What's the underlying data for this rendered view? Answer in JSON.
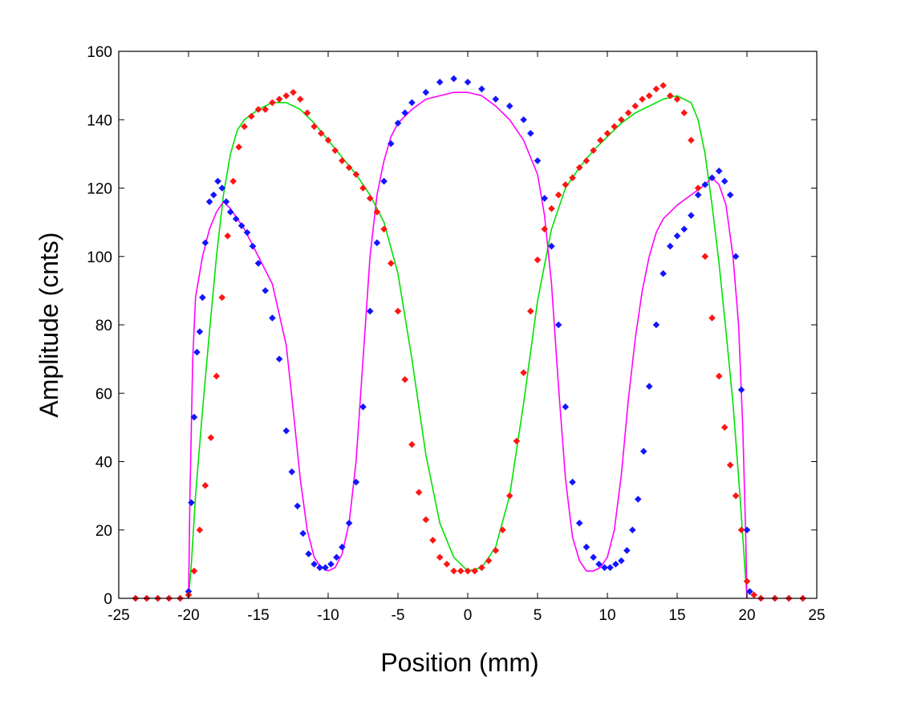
{
  "chart_data": {
    "type": "scatter",
    "title": "",
    "xlabel": "Position (mm)",
    "ylabel": "Amplitude (cnts)",
    "xlim": [
      -25,
      25
    ],
    "ylim": [
      0,
      160
    ],
    "xticks": [
      -25,
      -20,
      -15,
      -10,
      -5,
      0,
      5,
      10,
      15,
      20,
      25
    ],
    "yticks": [
      0,
      20,
      40,
      60,
      80,
      100,
      120,
      140,
      160
    ],
    "xtick_labels": [
      "-25",
      "-20",
      "-15",
      "-10",
      "-5",
      "0",
      "5",
      "10",
      "15",
      "20",
      "25"
    ],
    "ytick_labels": [
      "0",
      "20",
      "40",
      "60",
      "80",
      "100",
      "120",
      "140",
      "160"
    ],
    "grid": false,
    "legend": "none",
    "colors": {
      "blue_points": "#1414ff",
      "red_points": "#ff1414",
      "green_fit": "#00e000",
      "magenta_fit": "#ff00ff"
    },
    "series": [
      {
        "kind": "points",
        "color_key": "blue_points",
        "x": [
          -23.8,
          -23.0,
          -22.2,
          -21.4,
          -20.6,
          -20.0,
          -19.8,
          -19.6,
          -19.4,
          -19.2,
          -19.0,
          -18.8,
          -18.5,
          -18.2,
          -17.9,
          -17.6,
          -17.3,
          -17.0,
          -16.6,
          -16.2,
          -15.8,
          -15.4,
          -15.0,
          -14.5,
          -14.0,
          -13.5,
          -13.0,
          -12.6,
          -12.2,
          -11.8,
          -11.4,
          -11.0,
          -10.6,
          -10.2,
          -9.8,
          -9.4,
          -9.0,
          -8.5,
          -8.0,
          -7.5,
          -7.0,
          -6.5,
          -6.0,
          -5.5,
          -5.0,
          -4.5,
          -4.0,
          -3.0,
          -2.0,
          -1.0,
          0.0,
          1.0,
          2.0,
          3.0,
          4.0,
          4.5,
          5.0,
          5.5,
          6.0,
          6.5,
          7.0,
          7.5,
          8.0,
          8.5,
          9.0,
          9.4,
          9.8,
          10.2,
          10.6,
          11.0,
          11.4,
          11.8,
          12.2,
          12.6,
          13.0,
          13.5,
          14.0,
          14.5,
          15.0,
          15.5,
          16.0,
          16.5,
          17.0,
          17.5,
          18.0,
          18.4,
          18.8,
          19.2,
          19.6,
          20.0,
          20.2,
          21.0,
          22.0,
          23.0,
          24.0
        ],
        "y": [
          0,
          0,
          0,
          0,
          0,
          2,
          28,
          53,
          72,
          78,
          88,
          104,
          116,
          118,
          122,
          120,
          116,
          113,
          111,
          109,
          107,
          103,
          98,
          90,
          82,
          70,
          49,
          37,
          27,
          19,
          13,
          10,
          9,
          9,
          10,
          12,
          15,
          22,
          34,
          56,
          84,
          104,
          122,
          133,
          139,
          142,
          145,
          148,
          151,
          152,
          151,
          149,
          146,
          144,
          140,
          136,
          128,
          117,
          103,
          80,
          56,
          34,
          22,
          15,
          12,
          10,
          9,
          9,
          10,
          11,
          14,
          20,
          29,
          43,
          62,
          80,
          95,
          103,
          106,
          108,
          112,
          118,
          121,
          123,
          125,
          122,
          118,
          100,
          61,
          20,
          2,
          0,
          0,
          0,
          0
        ]
      },
      {
        "kind": "points",
        "color_key": "red_points",
        "x": [
          -23.8,
          -23.0,
          -22.2,
          -21.4,
          -20.6,
          -20.0,
          -19.6,
          -19.2,
          -18.8,
          -18.4,
          -18.0,
          -17.6,
          -17.2,
          -16.8,
          -16.4,
          -16.0,
          -15.5,
          -15.0,
          -14.5,
          -14.0,
          -13.5,
          -13.0,
          -12.5,
          -12.0,
          -11.5,
          -11.0,
          -10.5,
          -10.0,
          -9.5,
          -9.0,
          -8.5,
          -8.0,
          -7.5,
          -7.0,
          -6.5,
          -6.0,
          -5.5,
          -5.0,
          -4.5,
          -4.0,
          -3.5,
          -3.0,
          -2.5,
          -2.0,
          -1.5,
          -1.0,
          -0.5,
          0.0,
          0.5,
          1.0,
          1.5,
          2.0,
          2.5,
          3.0,
          3.5,
          4.0,
          4.5,
          5.0,
          5.5,
          6.0,
          6.5,
          7.0,
          7.5,
          8.0,
          8.5,
          9.0,
          9.5,
          10.0,
          10.5,
          11.0,
          11.5,
          12.0,
          12.5,
          13.0,
          13.5,
          14.0,
          14.5,
          15.0,
          15.5,
          16.0,
          16.5,
          17.0,
          17.5,
          18.0,
          18.4,
          18.8,
          19.2,
          19.6,
          20.0,
          20.5,
          21.0,
          22.0,
          23.0,
          24.0
        ],
        "y": [
          0,
          0,
          0,
          0,
          0,
          1,
          8,
          20,
          33,
          47,
          65,
          88,
          106,
          122,
          132,
          138,
          141,
          143,
          143,
          145,
          146,
          147,
          148,
          146,
          142,
          138,
          136,
          134,
          131,
          128,
          126,
          124,
          120,
          117,
          113,
          108,
          98,
          84,
          64,
          45,
          31,
          23,
          17,
          12,
          10,
          8,
          8,
          8,
          8,
          9,
          11,
          14,
          20,
          30,
          46,
          66,
          84,
          99,
          108,
          114,
          118,
          121,
          123,
          126,
          128,
          131,
          134,
          136,
          138,
          140,
          142,
          144,
          146,
          147,
          149,
          150,
          147,
          146,
          142,
          134,
          120,
          100,
          82,
          65,
          50,
          39,
          30,
          20,
          5,
          1,
          0,
          0,
          0,
          0
        ]
      },
      {
        "kind": "line",
        "color_key": "green_fit",
        "x": [
          -20.0,
          -19.8,
          -19.5,
          -19.0,
          -18.5,
          -18.0,
          -17.5,
          -17.0,
          -16.5,
          -16.0,
          -15.0,
          -14.0,
          -13.0,
          -12.0,
          -11.0,
          -10.0,
          -9.0,
          -8.0,
          -7.0,
          -6.0,
          -5.0,
          -4.0,
          -3.0,
          -2.0,
          -1.0,
          0.0,
          1.0,
          2.0,
          3.0,
          4.0,
          5.0,
          6.0,
          7.0,
          8.0,
          9.0,
          10.0,
          11.0,
          12.0,
          13.0,
          14.0,
          15.0,
          16.0,
          16.5,
          17.0,
          17.5,
          18.0,
          18.5,
          19.0,
          19.5,
          19.8,
          20.0
        ],
        "y": [
          0,
          10,
          30,
          55,
          78,
          100,
          118,
          130,
          137,
          140,
          143,
          145,
          145,
          143,
          139,
          134,
          129,
          124,
          118,
          110,
          95,
          70,
          42,
          22,
          12,
          8,
          9,
          15,
          30,
          57,
          87,
          108,
          120,
          126,
          131,
          135,
          139,
          142,
          144,
          146,
          147,
          145,
          140,
          130,
          115,
          98,
          78,
          57,
          30,
          12,
          0
        ]
      },
      {
        "kind": "line",
        "color_key": "magenta_fit",
        "x": [
          -20.0,
          -19.9,
          -19.7,
          -19.5,
          -19.0,
          -18.5,
          -18.0,
          -17.5,
          -17.0,
          -16.0,
          -15.0,
          -14.0,
          -13.0,
          -12.5,
          -12.0,
          -11.5,
          -11.0,
          -10.5,
          -10.0,
          -9.5,
          -9.0,
          -8.5,
          -8.0,
          -7.5,
          -7.0,
          -6.5,
          -6.0,
          -5.5,
          -5.0,
          -4.0,
          -3.0,
          -2.0,
          -1.0,
          0.0,
          1.0,
          2.0,
          3.0,
          4.0,
          5.0,
          5.5,
          6.0,
          6.5,
          7.0,
          7.5,
          8.0,
          8.5,
          9.0,
          9.5,
          10.0,
          10.5,
          11.0,
          11.5,
          12.0,
          12.5,
          13.0,
          13.5,
          14.0,
          15.0,
          16.0,
          17.0,
          17.5,
          18.0,
          18.5,
          19.0,
          19.4,
          19.7,
          19.9,
          20.0
        ],
        "y": [
          0,
          30,
          70,
          88,
          100,
          108,
          113,
          116,
          114,
          108,
          100,
          92,
          74,
          55,
          35,
          20,
          12,
          9,
          8,
          9,
          13,
          22,
          40,
          70,
          100,
          118,
          128,
          135,
          139,
          143,
          146,
          147,
          148,
          148,
          147,
          144,
          140,
          134,
          124,
          112,
          92,
          62,
          35,
          18,
          11,
          8,
          8,
          9,
          12,
          20,
          36,
          58,
          76,
          90,
          100,
          107,
          111,
          115,
          118,
          121,
          123,
          121,
          115,
          100,
          80,
          50,
          20,
          0
        ]
      }
    ]
  }
}
